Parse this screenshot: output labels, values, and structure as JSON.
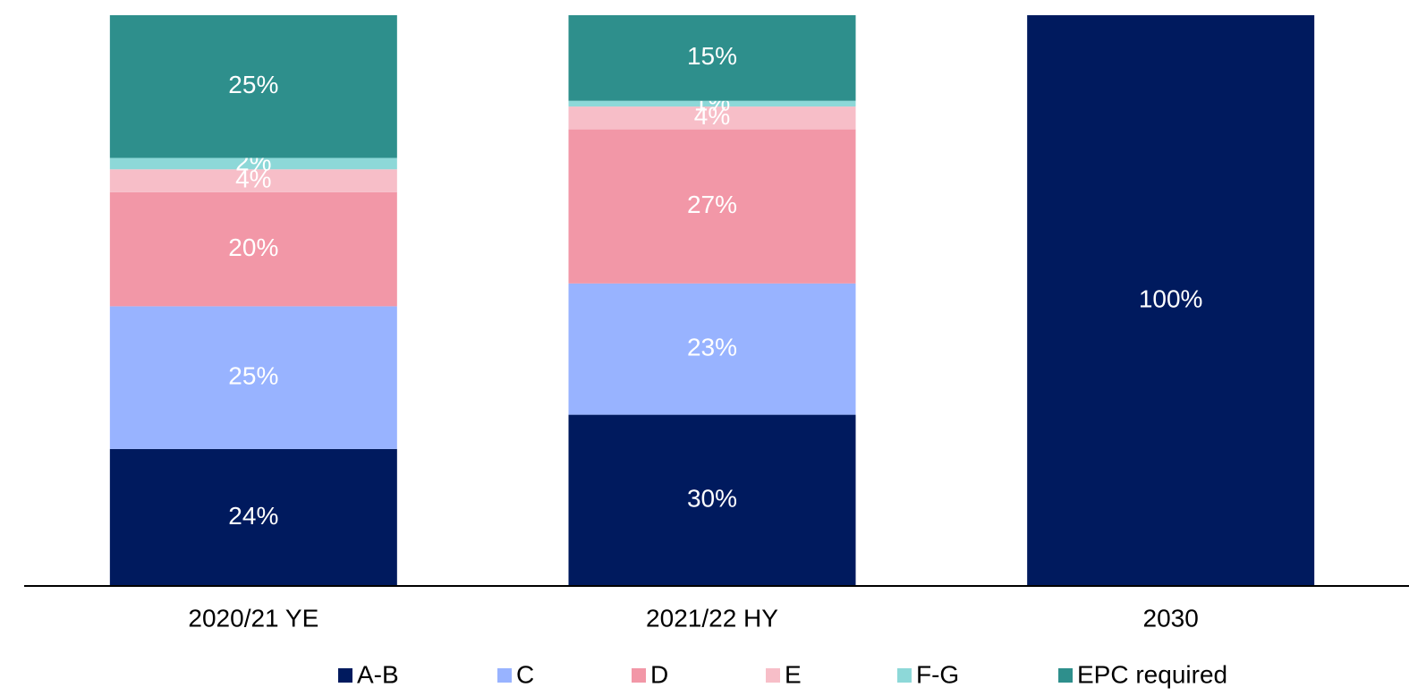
{
  "chart_data": {
    "type": "stacked_bar",
    "categories": [
      "2020/21 YE",
      "2021/22 HY",
      "2030"
    ],
    "series": [
      {
        "name": "A-B",
        "color": "#001a5e",
        "values": [
          24,
          30,
          100
        ],
        "value_labels": [
          "24%",
          "30%",
          "100%"
        ]
      },
      {
        "name": "C",
        "color": "#98b3ff",
        "values": [
          25,
          23,
          null
        ],
        "value_labels": [
          "25%",
          "23%",
          null
        ]
      },
      {
        "name": "D",
        "color": "#f297a7",
        "values": [
          20,
          27,
          null
        ],
        "value_labels": [
          "20%",
          "27%",
          null
        ]
      },
      {
        "name": "E",
        "color": "#f7bec8",
        "values": [
          4,
          4,
          null
        ],
        "value_labels": [
          "4%",
          "4%",
          null
        ]
      },
      {
        "name": "F-G",
        "color": "#8dd8d8",
        "values": [
          2,
          1,
          null
        ],
        "value_labels": [
          "2%",
          "1%",
          null
        ]
      },
      {
        "name": "EPC required",
        "color": "#2e8f8c",
        "values": [
          25,
          15,
          null
        ],
        "value_labels": [
          "25%",
          "15%",
          null
        ]
      }
    ],
    "legend": "bottom"
  }
}
